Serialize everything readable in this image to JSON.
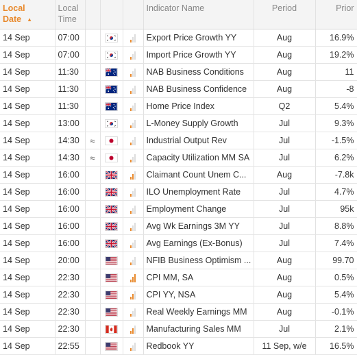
{
  "header": {
    "local_date": "Local\nDate",
    "local_time": "Local\nTime",
    "indicator_name": "Indicator Name",
    "period": "Period",
    "prior": "Prior"
  },
  "colors": {
    "accent": "#e8892c",
    "header_bg": "#f4f4f4",
    "grid": "#e2e2e2"
  },
  "rows": [
    {
      "date": "14 Sep",
      "time": "07:00",
      "approx": "",
      "country": "KR",
      "importance": 1,
      "name": "Export Price Growth YY",
      "period": "Aug",
      "prior": "16.9%"
    },
    {
      "date": "14 Sep",
      "time": "07:00",
      "approx": "",
      "country": "KR",
      "importance": 1,
      "name": "Import Price Growth YY",
      "period": "Aug",
      "prior": "19.2%"
    },
    {
      "date": "14 Sep",
      "time": "11:30",
      "approx": "",
      "country": "AU",
      "importance": 1,
      "name": "NAB Business Conditions",
      "period": "Aug",
      "prior": "11"
    },
    {
      "date": "14 Sep",
      "time": "11:30",
      "approx": "",
      "country": "AU",
      "importance": 1,
      "name": "NAB Business Confidence",
      "period": "Aug",
      "prior": "-8"
    },
    {
      "date": "14 Sep",
      "time": "11:30",
      "approx": "",
      "country": "AU",
      "importance": 1,
      "name": "Home Price Index",
      "period": "Q2",
      "prior": "5.4%"
    },
    {
      "date": "14 Sep",
      "time": "13:00",
      "approx": "",
      "country": "KR",
      "importance": 1,
      "name": "L-Money Supply Growth",
      "period": "Jul",
      "prior": "9.3%"
    },
    {
      "date": "14 Sep",
      "time": "14:30",
      "approx": "≈",
      "country": "JP",
      "importance": 1,
      "name": "Industrial Output Rev",
      "period": "Jul",
      "prior": "-1.5%"
    },
    {
      "date": "14 Sep",
      "time": "14:30",
      "approx": "≈",
      "country": "JP",
      "importance": 1,
      "name": "Capacity Utilization MM SA",
      "period": "Jul",
      "prior": "6.2%"
    },
    {
      "date": "14 Sep",
      "time": "16:00",
      "approx": "",
      "country": "GB",
      "importance": 2,
      "name": "Claimant Count Unem C...",
      "period": "Aug",
      "prior": "-7.8k"
    },
    {
      "date": "14 Sep",
      "time": "16:00",
      "approx": "",
      "country": "GB",
      "importance": 1,
      "name": "ILO Unemployment Rate",
      "period": "Jul",
      "prior": "4.7%"
    },
    {
      "date": "14 Sep",
      "time": "16:00",
      "approx": "",
      "country": "GB",
      "importance": 1,
      "name": "Employment Change",
      "period": "Jul",
      "prior": "95k"
    },
    {
      "date": "14 Sep",
      "time": "16:00",
      "approx": "",
      "country": "GB",
      "importance": 1,
      "name": "Avg Wk Earnings 3M YY",
      "period": "Jul",
      "prior": "8.8%"
    },
    {
      "date": "14 Sep",
      "time": "16:00",
      "approx": "",
      "country": "GB",
      "importance": 1,
      "name": "Avg Earnings (Ex-Bonus)",
      "period": "Jul",
      "prior": "7.4%"
    },
    {
      "date": "14 Sep",
      "time": "20:00",
      "approx": "",
      "country": "US",
      "importance": 1,
      "name": "NFIB Business Optimism ...",
      "period": "Aug",
      "prior": "99.70"
    },
    {
      "date": "14 Sep",
      "time": "22:30",
      "approx": "",
      "country": "US",
      "importance": 3,
      "name": "CPI MM, SA",
      "period": "Aug",
      "prior": "0.5%"
    },
    {
      "date": "14 Sep",
      "time": "22:30",
      "approx": "",
      "country": "US",
      "importance": 2,
      "name": "CPI YY, NSA",
      "period": "Aug",
      "prior": "5.4%"
    },
    {
      "date": "14 Sep",
      "time": "22:30",
      "approx": "",
      "country": "US",
      "importance": 1,
      "name": "Real Weekly Earnings MM",
      "period": "Aug",
      "prior": "-0.1%"
    },
    {
      "date": "14 Sep",
      "time": "22:30",
      "approx": "",
      "country": "CA",
      "importance": 2,
      "name": "Manufacturing Sales MM",
      "period": "Jul",
      "prior": "2.1%"
    },
    {
      "date": "14 Sep",
      "time": "22:55",
      "approx": "",
      "country": "US",
      "importance": 1,
      "name": "Redbook YY",
      "period": "11 Sep, w/e",
      "prior": "16.5%"
    }
  ]
}
